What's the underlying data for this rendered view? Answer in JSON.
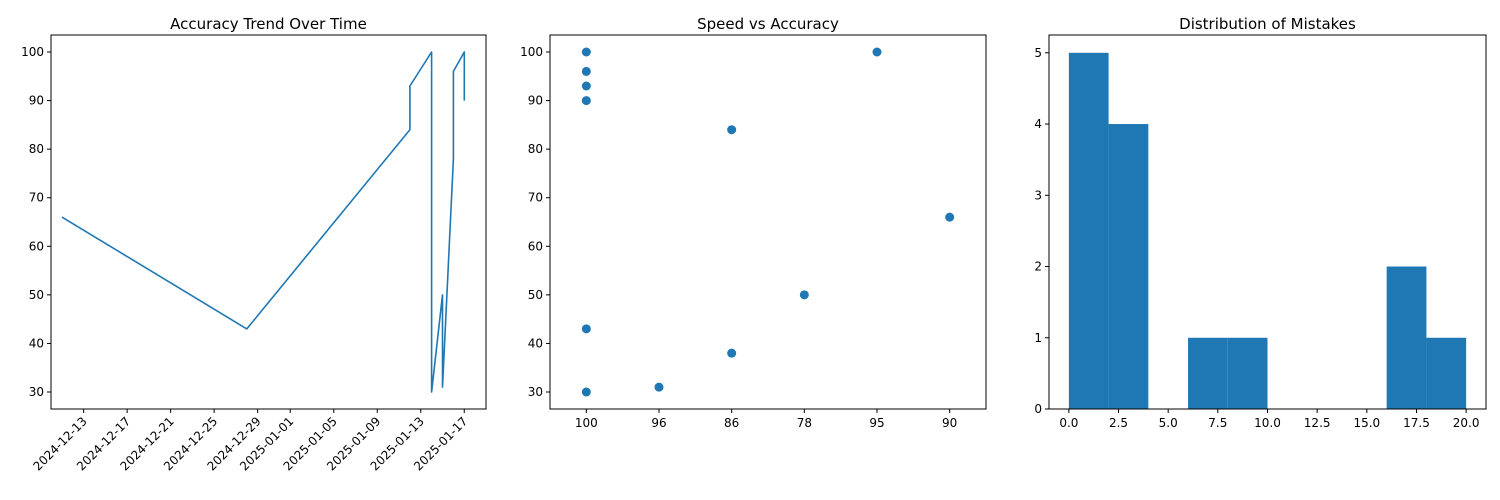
{
  "chart_data": [
    {
      "type": "line",
      "title": "Accuracy Trend Over Time",
      "xlabel": "",
      "ylabel": "",
      "color": "#1f77b4",
      "x_ticks": [
        "2024-12-13",
        "2024-12-17",
        "2024-12-21",
        "2024-12-25",
        "2024-12-29",
        "2025-01-01",
        "2025-01-05",
        "2025-01-09",
        "2025-01-13",
        "2025-01-17"
      ],
      "y_ticks": [
        "30",
        "40",
        "50",
        "60",
        "70",
        "80",
        "90",
        "100"
      ],
      "xlim": [
        "2024-12-10",
        "2025-01-19"
      ],
      "ylim": [
        26.5,
        103.5
      ],
      "x": [
        "2024-12-11",
        "2024-12-28",
        "2025-01-12",
        "2025-01-12",
        "2025-01-14",
        "2025-01-14",
        "2025-01-15",
        "2025-01-15",
        "2025-01-15",
        "2025-01-16",
        "2025-01-16",
        "2025-01-17",
        "2025-01-17"
      ],
      "values": [
        66,
        43,
        84,
        93,
        100,
        30,
        50,
        38,
        31,
        78,
        96,
        100,
        90
      ],
      "grid": false
    },
    {
      "type": "scatter",
      "title": "Speed vs Accuracy",
      "xlabel": "",
      "ylabel": "",
      "color": "#1f77b4",
      "categories": [
        "100",
        "96",
        "86",
        "78",
        "95",
        "90"
      ],
      "y_ticks": [
        "30",
        "40",
        "50",
        "60",
        "70",
        "80",
        "90",
        "100"
      ],
      "ylim": [
        26.5,
        103.5
      ],
      "points": [
        {
          "x": "100",
          "y": 100
        },
        {
          "x": "100",
          "y": 96
        },
        {
          "x": "100",
          "y": 93
        },
        {
          "x": "100",
          "y": 90
        },
        {
          "x": "100",
          "y": 43
        },
        {
          "x": "100",
          "y": 30
        },
        {
          "x": "96",
          "y": 31
        },
        {
          "x": "86",
          "y": 84
        },
        {
          "x": "86",
          "y": 38
        },
        {
          "x": "78",
          "y": 50
        },
        {
          "x": "95",
          "y": 100
        },
        {
          "x": "90",
          "y": 66
        }
      ],
      "grid": false
    },
    {
      "type": "bar",
      "title": "Distribution of Mistakes",
      "xlabel": "",
      "ylabel": "",
      "color": "#1f77b4",
      "x_ticks": [
        "0.0",
        "2.5",
        "5.0",
        "7.5",
        "10.0",
        "12.5",
        "15.0",
        "17.5",
        "20.0"
      ],
      "y_ticks": [
        "0",
        "1",
        "2",
        "3",
        "4",
        "5"
      ],
      "xlim": [
        -1,
        21
      ],
      "ylim": [
        0,
        5.25
      ],
      "bin_edges": [
        0,
        2,
        4,
        6,
        8,
        10,
        12,
        14,
        16,
        18,
        20
      ],
      "values": [
        5,
        4,
        0,
        1,
        1,
        0,
        0,
        0,
        2,
        1
      ],
      "grid": false
    }
  ]
}
